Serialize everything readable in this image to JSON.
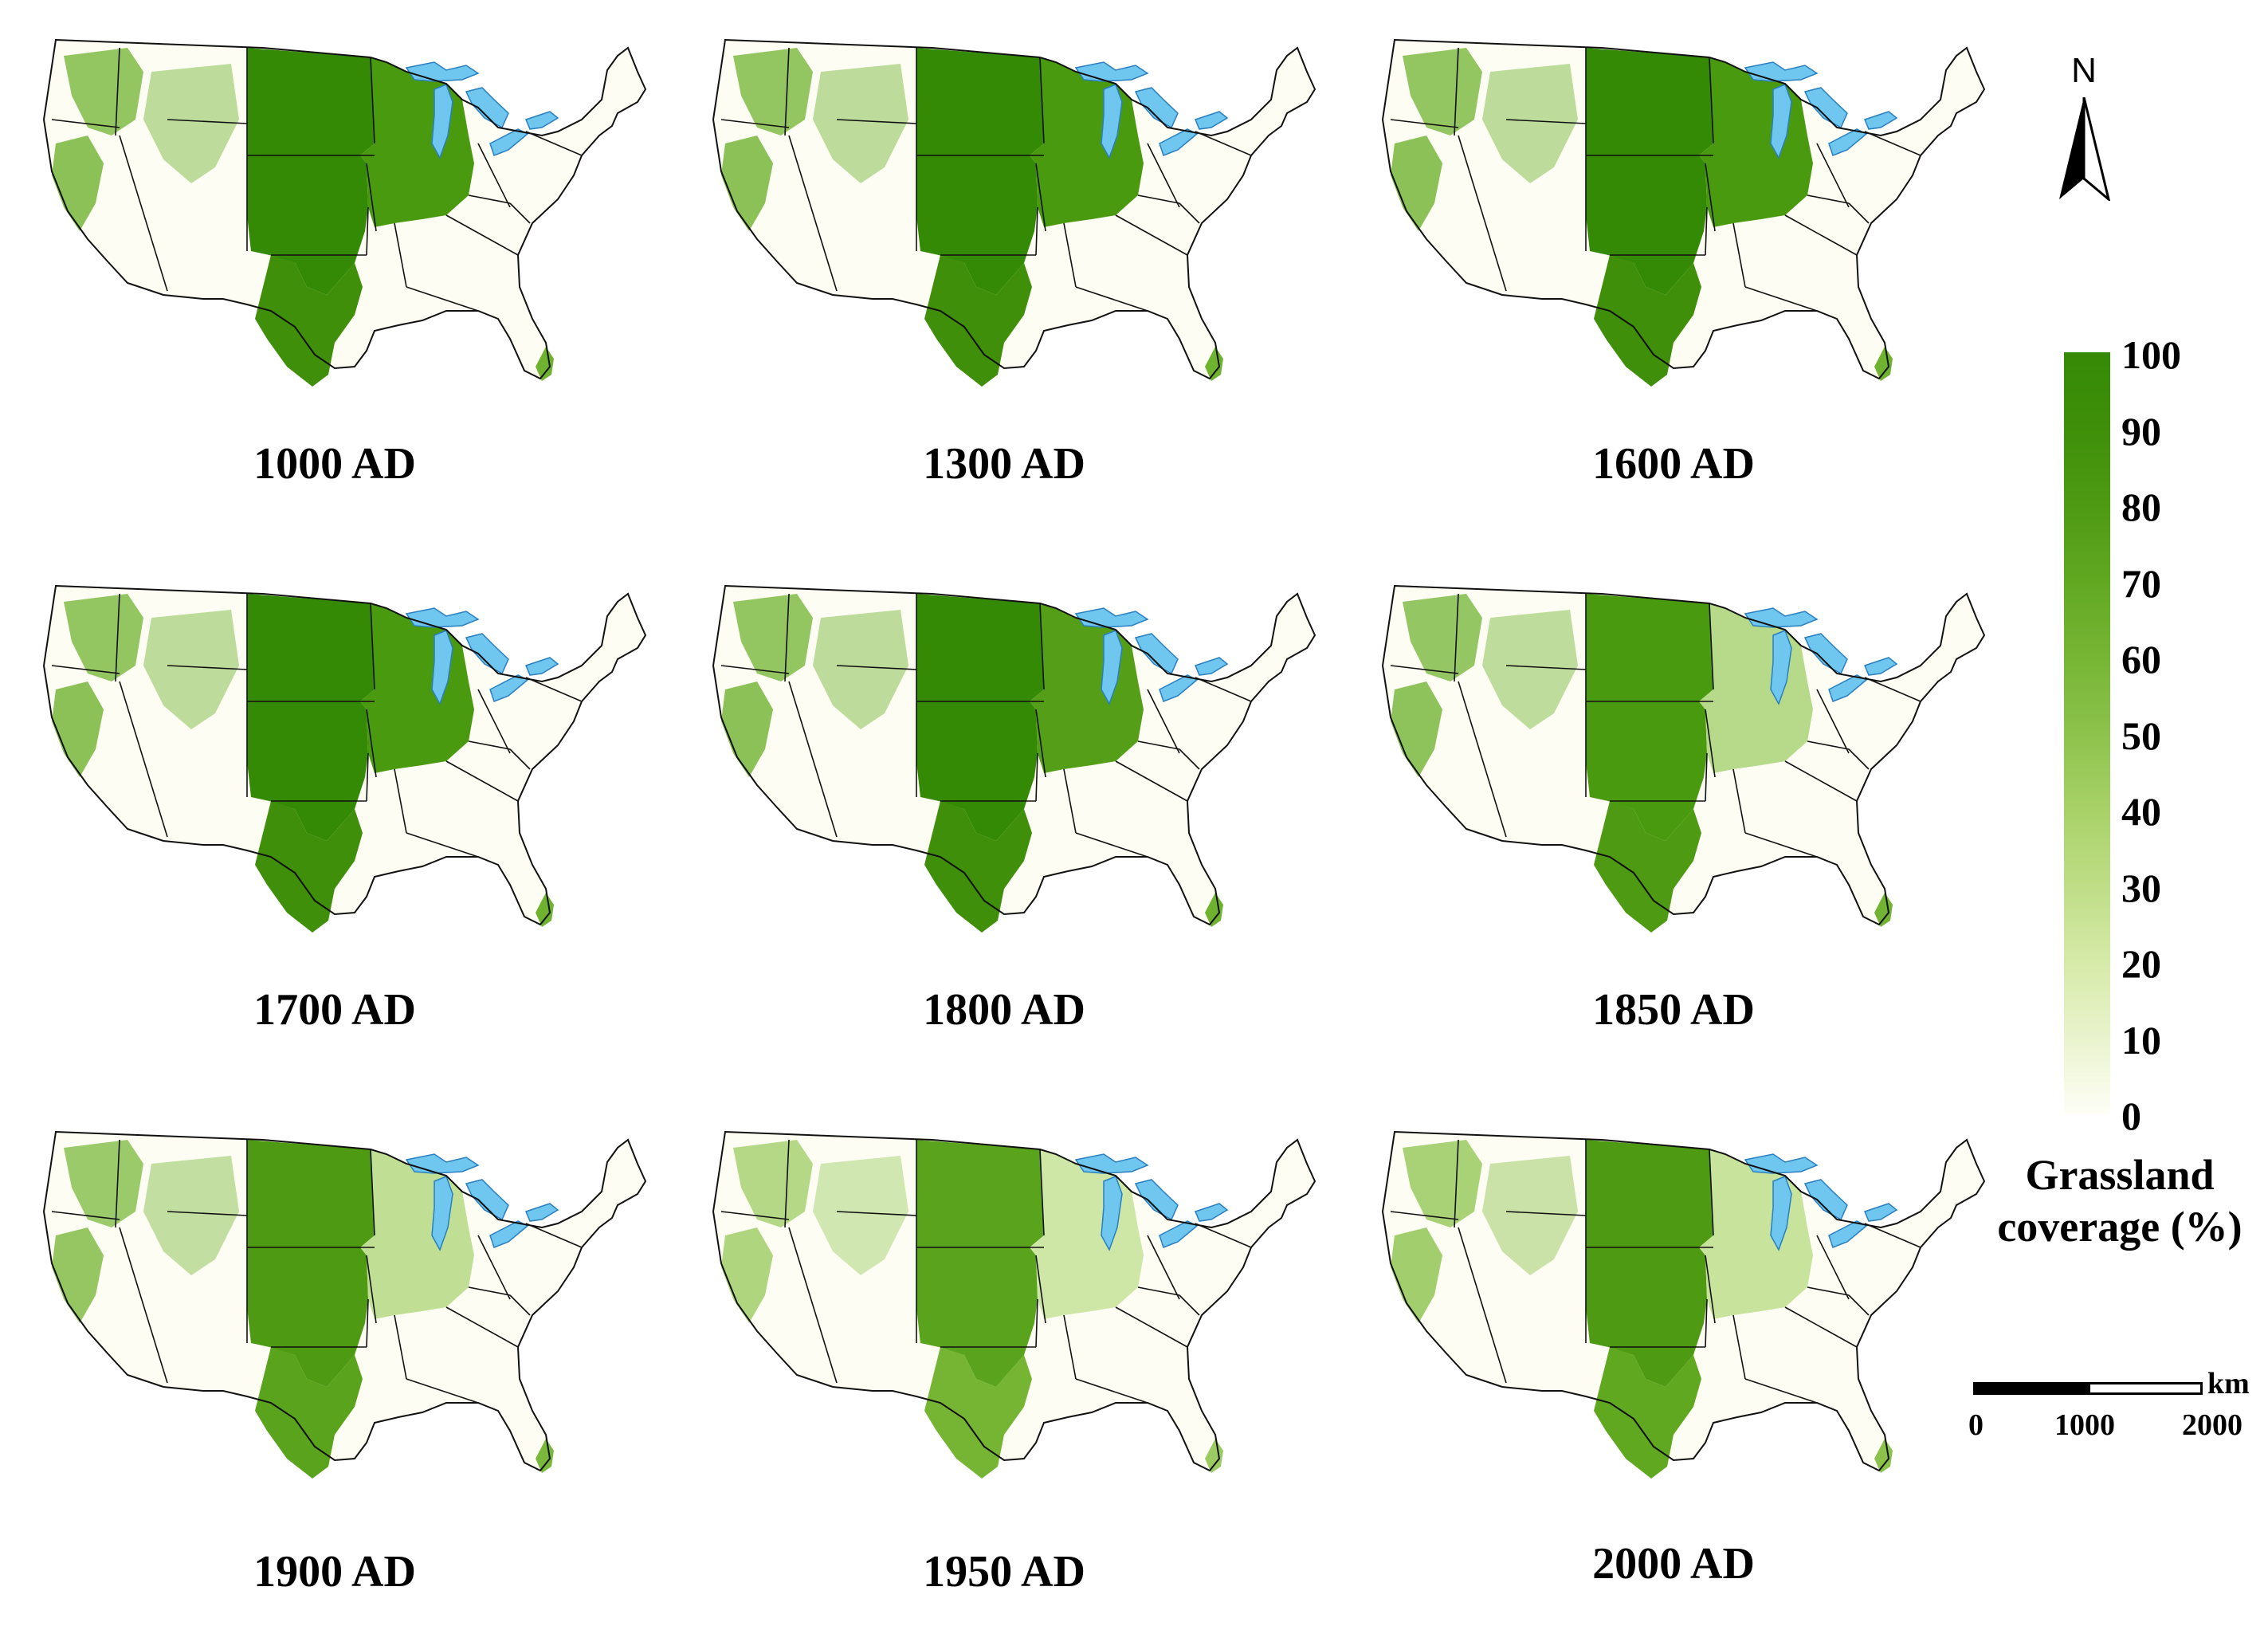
{
  "panels": [
    {
      "label": "1000 AD",
      "plains_green": "#358a05",
      "east_green": "#4a9a10",
      "west_green": "#6fb230",
      "texas_green": "#3f8f0a"
    },
    {
      "label": "1300 AD",
      "plains_green": "#358a05",
      "east_green": "#4a9a10",
      "west_green": "#6fb230",
      "texas_green": "#3f8f0a"
    },
    {
      "label": "1600 AD",
      "plains_green": "#358a05",
      "east_green": "#4a9a10",
      "west_green": "#6fb230",
      "texas_green": "#3f8f0a"
    },
    {
      "label": "1700 AD",
      "plains_green": "#358a05",
      "east_green": "#4a9a10",
      "west_green": "#6fb230",
      "texas_green": "#3f8f0a"
    },
    {
      "label": "1800 AD",
      "plains_green": "#358a05",
      "east_green": "#559f18",
      "west_green": "#6fb230",
      "texas_green": "#3f8f0a"
    },
    {
      "label": "1850 AD",
      "plains_green": "#4a9a10",
      "east_green": "#b7da8a",
      "west_green": "#72b334",
      "texas_green": "#4e9a13"
    },
    {
      "label": "1900 AD",
      "plains_green": "#4e9a13",
      "east_green": "#c0df95",
      "west_green": "#7ab83c",
      "texas_green": "#5aa31c"
    },
    {
      "label": "1950 AD",
      "plains_green": "#5aa31c",
      "east_green": "#cfe7a6",
      "west_green": "#9ccb62",
      "texas_green": "#76b534"
    },
    {
      "label": "2000 AD",
      "plains_green": "#4e9a13",
      "east_green": "#c8e39b",
      "west_green": "#8cc24b",
      "texas_green": "#61a821"
    }
  ],
  "lake_color": "#6fc6ee",
  "north_arrow": {
    "label": "N",
    "icon": "north-arrow-icon"
  },
  "legend": {
    "title_line1": "Grassland",
    "title_line2": "coverage (%)",
    "ticks": [
      "100",
      "90",
      "80",
      "70",
      "60",
      "50",
      "40",
      "30",
      "20",
      "10",
      "0"
    ],
    "tick_values": [
      100,
      90,
      80,
      70,
      60,
      50,
      40,
      30,
      20,
      10,
      0
    ],
    "color_low": "#fefef6",
    "color_high": "#358a05"
  },
  "scale_bar": {
    "unit": "km",
    "labels": [
      "0",
      "1000",
      "2000"
    ]
  }
}
